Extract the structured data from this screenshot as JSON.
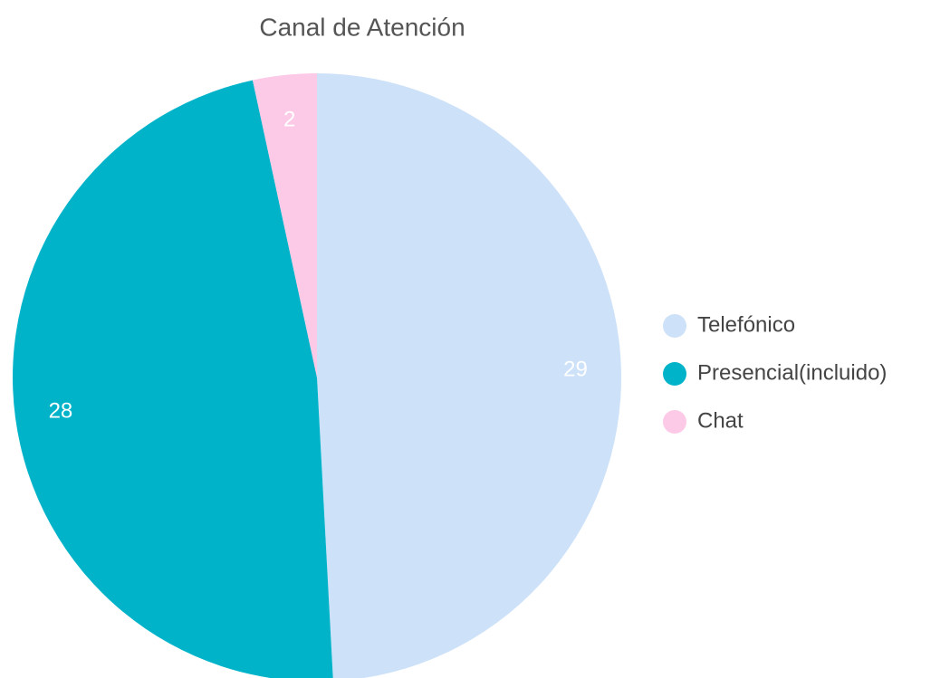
{
  "chart_data": {
    "type": "pie",
    "title": "Canal de Atención",
    "categories": [
      "Telefónico",
      "Presencial(incluido)",
      "Chat"
    ],
    "values": [
      29,
      28,
      2
    ],
    "colors": [
      "#cde1f9",
      "#00b3c9",
      "#fcc9e7"
    ],
    "legend": "right"
  }
}
